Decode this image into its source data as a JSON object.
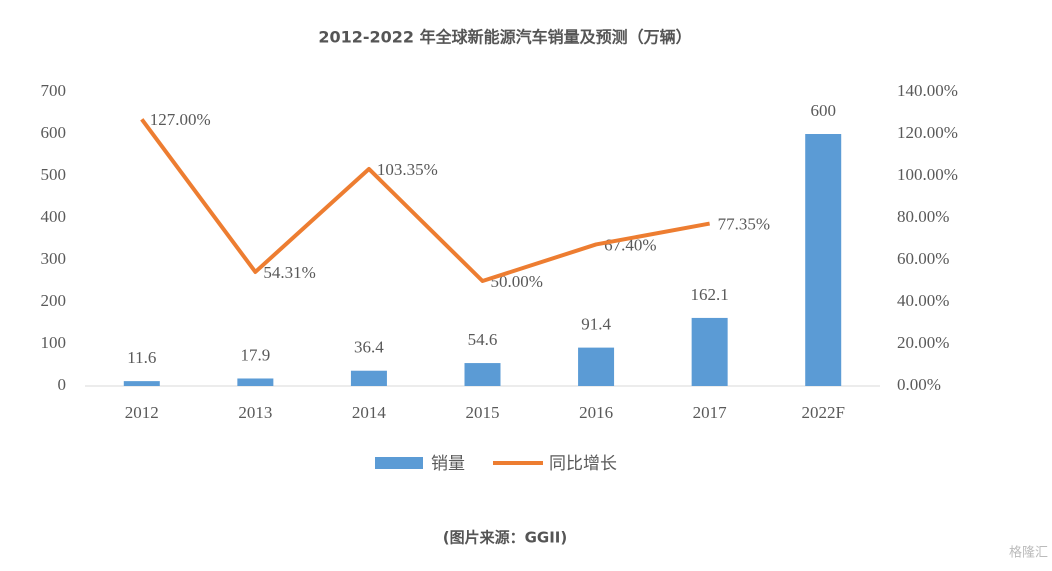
{
  "chart_data": {
    "type": "bar_line",
    "title": "2012-2022 年全球新能源汽车销量及预测（万辆）",
    "source": "(图片来源：GGII)",
    "watermark": "格隆汇",
    "categories": [
      "2012",
      "2013",
      "2014",
      "2015",
      "2016",
      "2017",
      "2022F"
    ],
    "series": [
      {
        "name": "销量",
        "type": "bar",
        "color": "#5b9bd5",
        "values": [
          11.6,
          17.9,
          36.4,
          54.6,
          91.4,
          162.1,
          600
        ]
      },
      {
        "name": "同比增长",
        "type": "line",
        "axis": "y2",
        "color": "#ed7d31",
        "values": [
          127,
          54.31,
          103.35,
          50,
          67.4,
          77.35,
          null
        ],
        "value_labels": [
          "127.00%",
          "54.31%",
          "103.35%",
          "50.00%",
          "67.40%",
          "77.35%",
          null
        ]
      }
    ],
    "ylim": [
      0,
      700
    ],
    "yticks": [
      0,
      100,
      200,
      300,
      400,
      500,
      600,
      700
    ],
    "y2lim": [
      0,
      140
    ],
    "y2ticks": [
      {
        "value": 0,
        "label": "0.00%"
      },
      {
        "value": 20,
        "label": "20.00%"
      },
      {
        "value": 40,
        "label": "40.00%"
      },
      {
        "value": 60,
        "label": "60.00%"
      },
      {
        "value": 80,
        "label": "80.00%"
      },
      {
        "value": 100,
        "label": "100.00%"
      },
      {
        "value": 120,
        "label": "120.00%"
      },
      {
        "value": 140,
        "label": "140.00%"
      }
    ],
    "grid": false,
    "legend": "bottom"
  }
}
